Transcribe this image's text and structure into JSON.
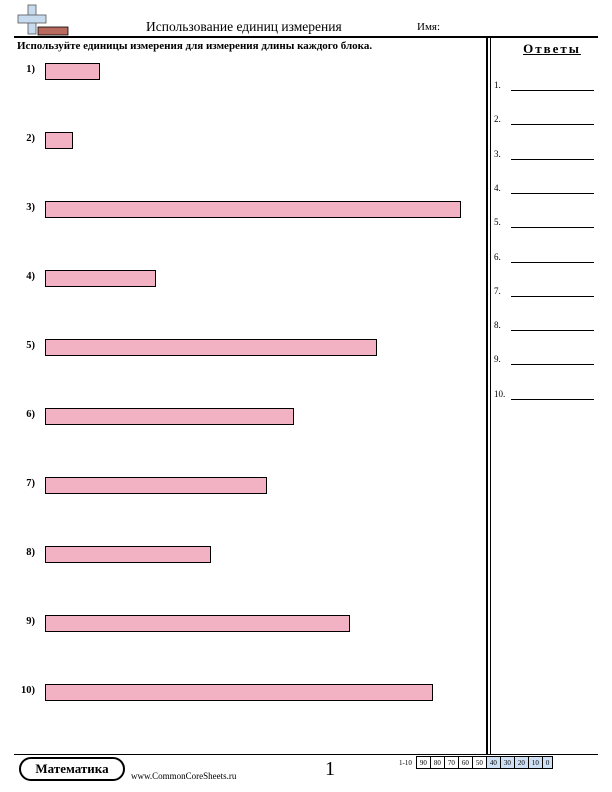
{
  "header": {
    "title": "Использование единиц измерения",
    "name_label": "Имя:"
  },
  "instructions": "Используйте единицы измерения для измерения длины каждого блока.",
  "problems": [
    {
      "label": "1)",
      "length_units": 2
    },
    {
      "label": "2)",
      "length_units": 1
    },
    {
      "label": "3)",
      "length_units": 15
    },
    {
      "label": "4)",
      "length_units": 4
    },
    {
      "label": "5)",
      "length_units": 12
    },
    {
      "label": "6)",
      "length_units": 9
    },
    {
      "label": "7)",
      "length_units": 8
    },
    {
      "label": "8)",
      "length_units": 6
    },
    {
      "label": "9)",
      "length_units": 11
    },
    {
      "label": "10)",
      "length_units": 14
    }
  ],
  "answers": {
    "title": "Ответы",
    "items": [
      "1.",
      "2.",
      "3.",
      "4.",
      "5.",
      "6.",
      "7.",
      "8.",
      "9.",
      "10."
    ]
  },
  "footer": {
    "brand": "Математика",
    "site": "www.CommonCoreSheets.ru",
    "page_number": "1",
    "score_range_label": "1-10",
    "scores": [
      "90",
      "80",
      "70",
      "60",
      "50",
      "40",
      "30",
      "20",
      "10",
      "0"
    ]
  },
  "colors": {
    "bar_fill": "#f2b2c3",
    "score_highlight": "#cfe0f5"
  }
}
